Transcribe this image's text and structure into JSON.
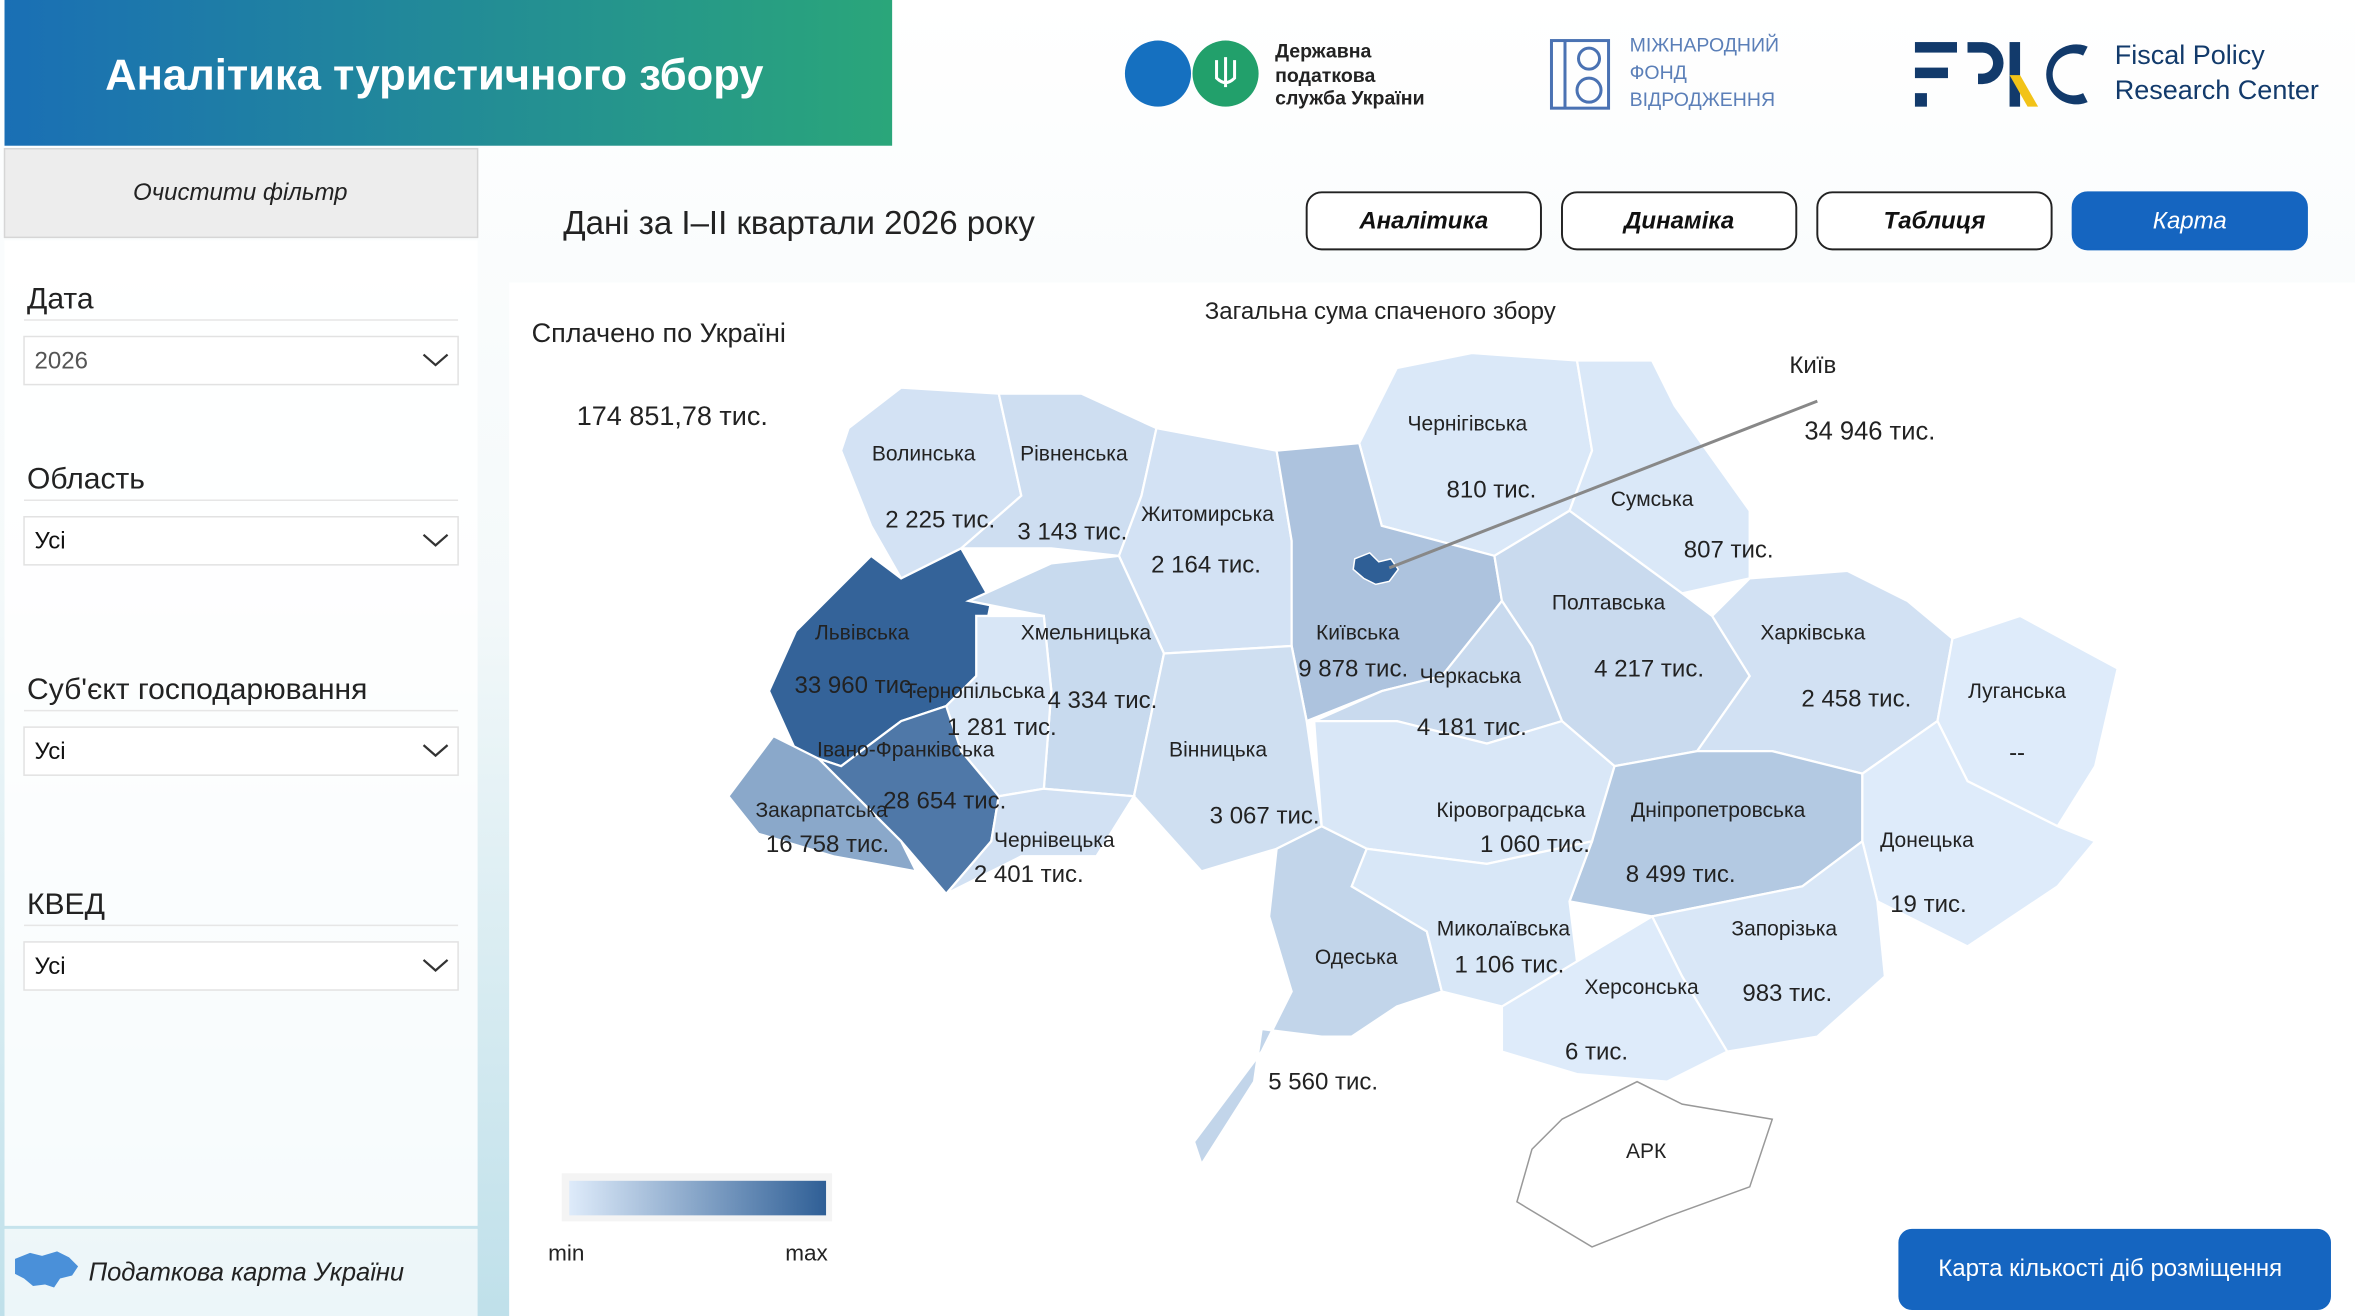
{
  "header": {
    "title": "Аналітика туристичного збору",
    "dps_logo": [
      "Державна",
      "податкова",
      "служба України"
    ],
    "irf_logo": [
      "МІЖНАРОДНИЙ",
      "ФОНД",
      "ВІДРОДЖЕННЯ"
    ],
    "fprc_logo": [
      "Fiscal Policy",
      "Research Center"
    ]
  },
  "sidebar": {
    "clear_filter": "Очистити фільтр",
    "filters": [
      {
        "label": "Дата",
        "value": "2026"
      },
      {
        "label": "Область",
        "value": "Усі"
      },
      {
        "label": "Суб'єкт господарювання",
        "value": "Усі"
      },
      {
        "label": "КВЕД",
        "value": "Усі"
      }
    ],
    "footer_link": "Податкова карта України"
  },
  "subtitle": "Дані за І–ІІ квартали 2026 року",
  "tabs": [
    {
      "label": "Аналітика",
      "active": false
    },
    {
      "label": "Динаміка",
      "active": false
    },
    {
      "label": "Таблиця",
      "active": false
    },
    {
      "label": "Карта",
      "active": true
    }
  ],
  "map": {
    "title": "Загальна сума спаченого збору",
    "total_label": "Сплачено по Україні",
    "total_value": "174 851,78 тис.",
    "color_min": "#deebfa",
    "color_max": "#2f5f96",
    "legend_min": "min",
    "legend_max": "max",
    "crimea_label": "АРК",
    "city": {
      "name": "Київ",
      "value": 34946,
      "value_label": "34 946 тис."
    },
    "regions": [
      {
        "name": "Волинська",
        "value": 2225,
        "value_label": "2 225 тис."
      },
      {
        "name": "Рівненська",
        "value": 3143,
        "value_label": "3 143 тис."
      },
      {
        "name": "Житомирська",
        "value": 2164,
        "value_label": "2 164 тис."
      },
      {
        "name": "Чернігівська",
        "value": 810,
        "value_label": "810 тис."
      },
      {
        "name": "Сумська",
        "value": 807,
        "value_label": "807 тис."
      },
      {
        "name": "Львівська",
        "value": 33960,
        "value_label": "33 960 тис."
      },
      {
        "name": "Київська",
        "value": 9878,
        "value_label": "9 878 тис."
      },
      {
        "name": "Хмельницька",
        "value": 4334,
        "value_label": "4 334 тис."
      },
      {
        "name": "Тернопільська",
        "value": 1281,
        "value_label": "1 281 тис."
      },
      {
        "name": "Полтавська",
        "value": 4217,
        "value_label": "4 217 тис."
      },
      {
        "name": "Харківська",
        "value": 2458,
        "value_label": "2 458 тис."
      },
      {
        "name": "Черкаська",
        "value": 4181,
        "value_label": "4 181 тис."
      },
      {
        "name": "Луганська",
        "value": null,
        "value_label": "--"
      },
      {
        "name": "Івано-Франківська",
        "value": 28654,
        "value_label": "28 654 тис."
      },
      {
        "name": "Вінницька",
        "value": 3067,
        "value_label": "3 067 тис."
      },
      {
        "name": "Закарпатська",
        "value": 16758,
        "value_label": "16 758 тис."
      },
      {
        "name": "Кіровоградська",
        "value": 1060,
        "value_label": "1 060 тис."
      },
      {
        "name": "Дніпропетровська",
        "value": 8499,
        "value_label": "8 499 тис."
      },
      {
        "name": "Чернівецька",
        "value": 2401,
        "value_label": "2 401 тис."
      },
      {
        "name": "Донецька",
        "value": 19,
        "value_label": "19 тис."
      },
      {
        "name": "Одеська",
        "value": 5560,
        "value_label": "5 560 тис."
      },
      {
        "name": "Миколаївська",
        "value": 1106,
        "value_label": "1 106 тис."
      },
      {
        "name": "Запорізька",
        "value": 983,
        "value_label": "983 тис."
      },
      {
        "name": "Херсонська",
        "value": 6,
        "value_label": "6 тис."
      }
    ]
  },
  "map_button": "Карта кількості діб розміщення"
}
